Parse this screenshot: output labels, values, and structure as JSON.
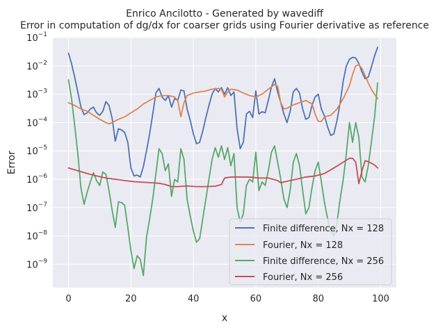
{
  "chart_data": {
    "type": "line",
    "title": "Enrico Ancilotto - Generated by wavediff",
    "subtitle": "Error in computation of dg/dx for coarser grids using Fourier derivative as reference",
    "xlabel": "x",
    "ylabel": "Error",
    "xlim": [
      -5,
      105
    ],
    "ylim": [
      1.5e-10,
      0.1
    ],
    "yscale": "log",
    "grid": true,
    "legend_position": "lower-right",
    "xticks": [
      0,
      20,
      40,
      60,
      80,
      100
    ],
    "xtick_labels": [
      "0",
      "20",
      "40",
      "60",
      "80",
      "100"
    ],
    "ytick_exponents": [
      -9,
      -8,
      -7,
      -6,
      -5,
      -4,
      -3,
      -2,
      -1
    ],
    "series": [
      {
        "name": "Finite difference, Nx = 128",
        "color": "#4c72b0",
        "points": [
          [
            0,
            0.028
          ],
          [
            1,
            0.012
          ],
          [
            2,
            0.004
          ],
          [
            3,
            0.0012
          ],
          [
            4,
            0.00035
          ],
          [
            5,
            0.00019
          ],
          [
            6,
            0.00022
          ],
          [
            7,
            0.0003
          ],
          [
            8,
            0.00035
          ],
          [
            9,
            0.00022
          ],
          [
            10,
            0.00018
          ],
          [
            11,
            0.00025
          ],
          [
            12,
            0.00055
          ],
          [
            13,
            0.0004
          ],
          [
            14,
            0.00014
          ],
          [
            15,
            2.2e-05
          ],
          [
            16,
            6e-05
          ],
          [
            17,
            5.5e-05
          ],
          [
            18,
            4.5e-05
          ],
          [
            19,
            2e-05
          ],
          [
            20,
            2.5e-06
          ],
          [
            21,
            1.3e-06
          ],
          [
            22,
            1.4e-06
          ],
          [
            23,
            1.2e-06
          ],
          [
            24,
            2.8e-06
          ],
          [
            25,
            1e-05
          ],
          [
            26,
            4e-05
          ],
          [
            27,
            0.0002
          ],
          [
            28,
            0.0011
          ],
          [
            29,
            0.0016
          ],
          [
            30,
            0.0008
          ],
          [
            31,
            0.0006
          ],
          [
            32,
            0.0009
          ],
          [
            33,
            0.00035
          ],
          [
            34,
            0.0007
          ],
          [
            35,
            0.0006
          ],
          [
            36,
            0.0014
          ],
          [
            37,
            0.0013
          ],
          [
            38,
            0.0003
          ],
          [
            39,
            0.00012
          ],
          [
            40,
            4e-05
          ],
          [
            41,
            1.8e-05
          ],
          [
            42,
            2e-05
          ],
          [
            43,
            5e-05
          ],
          [
            44,
            0.00015
          ],
          [
            45,
            0.0004
          ],
          [
            46,
            0.001
          ],
          [
            47,
            0.0016
          ],
          [
            48,
            0.0012
          ],
          [
            49,
            0.0017
          ],
          [
            50,
            0.001
          ],
          [
            51,
            0.0017
          ],
          [
            52,
            0.0009
          ],
          [
            53,
            0.0012
          ],
          [
            54,
            6e-05
          ],
          [
            55,
            1.2e-05
          ],
          [
            56,
            2e-05
          ],
          [
            57,
            0.0002
          ],
          [
            58,
            0.00025
          ],
          [
            59,
            0.00015
          ],
          [
            60,
            0.0013
          ],
          [
            61,
            0.0002
          ],
          [
            62,
            0.00024
          ],
          [
            63,
            0.00022
          ],
          [
            64,
            0.0006
          ],
          [
            65,
            0.0018
          ],
          [
            66,
            0.0035
          ],
          [
            67,
            0.0012
          ],
          [
            68,
            0.0005
          ],
          [
            69,
            0.0002
          ],
          [
            70,
            0.0001
          ],
          [
            71,
            0.00025
          ],
          [
            72,
            0.0012
          ],
          [
            73,
            0.0016
          ],
          [
            74,
            0.0011
          ],
          [
            75,
            0.0003
          ],
          [
            76,
            0.00013
          ],
          [
            77,
            0.00015
          ],
          [
            78,
            0.0004
          ],
          [
            79,
            0.0008
          ],
          [
            80,
            0.001
          ],
          [
            81,
            0.0003
          ],
          [
            82,
            0.00017
          ],
          [
            83,
            7e-05
          ],
          [
            84,
            3.5e-05
          ],
          [
            85,
            4e-05
          ],
          [
            86,
            0.00012
          ],
          [
            87,
            0.0005
          ],
          [
            88,
            0.003
          ],
          [
            89,
            0.01
          ],
          [
            90,
            0.017
          ],
          [
            91,
            0.02
          ],
          [
            92,
            0.019
          ],
          [
            93,
            0.012
          ],
          [
            94,
            0.006
          ],
          [
            95,
            0.0035
          ],
          [
            96,
            0.004
          ],
          [
            97,
            0.009
          ],
          [
            98,
            0.022
          ],
          [
            99,
            0.045
          ]
        ]
      },
      {
        "name": "Fourier, Nx = 128",
        "color": "#dd8452",
        "points": [
          [
            0,
            0.0005
          ],
          [
            2,
            0.0004
          ],
          [
            4,
            0.0003
          ],
          [
            6,
            0.00025
          ],
          [
            8,
            0.00018
          ],
          [
            10,
            0.00013
          ],
          [
            12,
            0.0001
          ],
          [
            13,
            9e-05
          ],
          [
            14,
            0.0001
          ],
          [
            16,
            0.00013
          ],
          [
            18,
            0.00016
          ],
          [
            20,
            0.00022
          ],
          [
            22,
            0.0003
          ],
          [
            24,
            0.00045
          ],
          [
            26,
            0.0006
          ],
          [
            28,
            0.0008
          ],
          [
            30,
            0.0009
          ],
          [
            32,
            0.0009
          ],
          [
            34,
            0.0008
          ],
          [
            35,
            0.0006
          ],
          [
            36,
            0.00016
          ],
          [
            37,
            0.0005
          ],
          [
            38,
            0.0009
          ],
          [
            40,
            0.0011
          ],
          [
            42,
            0.0012
          ],
          [
            44,
            0.0013
          ],
          [
            46,
            0.0015
          ],
          [
            48,
            0.0016
          ],
          [
            49,
            0.0015
          ],
          [
            50,
            0.0008
          ],
          [
            51,
            0.0012
          ],
          [
            52,
            0.0015
          ],
          [
            54,
            0.0014
          ],
          [
            56,
            0.0011
          ],
          [
            58,
            0.0009
          ],
          [
            60,
            0.0008
          ],
          [
            62,
            0.001
          ],
          [
            64,
            0.0015
          ],
          [
            66,
            0.0022
          ],
          [
            67,
            0.0019
          ],
          [
            68,
            0.0005
          ],
          [
            69,
            0.0003
          ],
          [
            70,
            0.00032
          ],
          [
            72,
            0.00042
          ],
          [
            74,
            0.0005
          ],
          [
            76,
            0.0006
          ],
          [
            78,
            0.00045
          ],
          [
            79,
            0.0002
          ],
          [
            80,
            0.00011
          ],
          [
            81,
            0.00011
          ],
          [
            82,
            0.00016
          ],
          [
            84,
            0.00018
          ],
          [
            86,
            0.0003
          ],
          [
            88,
            0.0007
          ],
          [
            90,
            0.002
          ],
          [
            91,
            0.005
          ],
          [
            92,
            0.01
          ],
          [
            93,
            0.011
          ],
          [
            94,
            0.008
          ],
          [
            95,
            0.0045
          ],
          [
            96,
            0.0025
          ],
          [
            97,
            0.0015
          ],
          [
            98,
            0.001
          ],
          [
            99,
            0.0007
          ]
        ]
      },
      {
        "name": "Finite difference, Nx = 256",
        "color": "#55a868",
        "points": [
          [
            0,
            0.0032
          ],
          [
            1,
            0.0007
          ],
          [
            2,
            8e-05
          ],
          [
            3,
            8e-06
          ],
          [
            4,
            5e-07
          ],
          [
            5,
            1.3e-07
          ],
          [
            6,
            3.5e-07
          ],
          [
            7,
            8e-07
          ],
          [
            8,
            1.7e-06
          ],
          [
            9,
            9e-07
          ],
          [
            10,
            6e-07
          ],
          [
            11,
            1.8e-06
          ],
          [
            12,
            1.5e-06
          ],
          [
            13,
            4e-07
          ],
          [
            14,
            8e-08
          ],
          [
            15,
            2e-08
          ],
          [
            16,
            1.6e-07
          ],
          [
            17,
            1.5e-07
          ],
          [
            18,
            1.2e-07
          ],
          [
            19,
            2e-08
          ],
          [
            20,
            3e-09
          ],
          [
            21,
            7e-10
          ],
          [
            22,
            2e-09
          ],
          [
            23,
            1.5e-09
          ],
          [
            24,
            4e-10
          ],
          [
            25,
            9e-09
          ],
          [
            26,
            4e-08
          ],
          [
            27,
            2e-07
          ],
          [
            28,
            1.6e-06
          ],
          [
            29,
            1.2e-05
          ],
          [
            30,
            8e-06
          ],
          [
            31,
            2e-06
          ],
          [
            32,
            3.5e-06
          ],
          [
            33,
            2.5e-07
          ],
          [
            34,
            1e-06
          ],
          [
            35,
            8e-07
          ],
          [
            36,
            1.2e-05
          ],
          [
            37,
            5e-06
          ],
          [
            38,
            2e-07
          ],
          [
            39,
            5e-08
          ],
          [
            40,
            1.5e-08
          ],
          [
            41,
            6e-09
          ],
          [
            42,
            8e-09
          ],
          [
            43,
            4e-08
          ],
          [
            44,
            2e-07
          ],
          [
            45,
            1e-06
          ],
          [
            46,
            5e-06
          ],
          [
            47,
            1.3e-05
          ],
          [
            48,
            6e-06
          ],
          [
            49,
            1.5e-05
          ],
          [
            50,
            5e-06
          ],
          [
            51,
            1.3e-05
          ],
          [
            52,
            3e-06
          ],
          [
            53,
            8e-06
          ],
          [
            54,
            1e-07
          ],
          [
            55,
            3e-08
          ],
          [
            56,
            6e-08
          ],
          [
            57,
            6e-07
          ],
          [
            58,
            1e-06
          ],
          [
            59,
            8e-07
          ],
          [
            60,
            9e-06
          ],
          [
            61,
            4e-07
          ],
          [
            62,
            8e-07
          ],
          [
            63,
            6e-07
          ],
          [
            64,
            2e-06
          ],
          [
            65,
            9e-06
          ],
          [
            66,
            1.5e-05
          ],
          [
            67,
            4e-06
          ],
          [
            68,
            1e-06
          ],
          [
            69,
            2e-07
          ],
          [
            70,
            1e-07
          ],
          [
            71,
            4e-07
          ],
          [
            72,
            4e-06
          ],
          [
            73,
            8e-06
          ],
          [
            74,
            3e-06
          ],
          [
            75,
            4e-07
          ],
          [
            76,
            6e-08
          ],
          [
            77,
            1e-07
          ],
          [
            78,
            5e-07
          ],
          [
            79,
            2e-06
          ],
          [
            80,
            4e-06
          ],
          [
            81,
            8e-07
          ],
          [
            82,
            1.5e-07
          ],
          [
            83,
            4e-08
          ],
          [
            84,
            1.5e-08
          ],
          [
            85,
            1e-08
          ],
          [
            86,
            3e-08
          ],
          [
            87,
            2e-07
          ],
          [
            88,
            1e-06
          ],
          [
            89,
            8e-06
          ],
          [
            90,
            0.0001
          ],
          [
            91,
            2e-05
          ],
          [
            92,
            0.0001
          ],
          [
            93,
            3e-05
          ],
          [
            94,
            1.2e-06
          ],
          [
            95,
            8e-07
          ],
          [
            96,
            3e-06
          ],
          [
            97,
            2e-05
          ],
          [
            98,
            0.00015
          ],
          [
            99,
            0.0025
          ]
        ]
      },
      {
        "name": "Fourier, Nx = 256",
        "color": "#c44e52",
        "points": [
          [
            0,
            2.5e-06
          ],
          [
            3,
            2e-06
          ],
          [
            6,
            1.6e-06
          ],
          [
            9,
            1.3e-06
          ],
          [
            12,
            1.1e-06
          ],
          [
            15,
            1e-06
          ],
          [
            18,
            9e-07
          ],
          [
            21,
            8.2e-07
          ],
          [
            24,
            7.8e-07
          ],
          [
            27,
            7.5e-07
          ],
          [
            29,
            7.2e-07
          ],
          [
            31,
            6.5e-07
          ],
          [
            33,
            5.5e-07
          ],
          [
            35,
            5.5e-07
          ],
          [
            38,
            5.8e-07
          ],
          [
            41,
            5.5e-07
          ],
          [
            44,
            5.5e-07
          ],
          [
            47,
            5.7e-07
          ],
          [
            49,
            6.5e-07
          ],
          [
            50,
            1.1e-06
          ],
          [
            52,
            1.2e-06
          ],
          [
            55,
            1.2e-06
          ],
          [
            58,
            1.2e-06
          ],
          [
            61,
            1.1e-06
          ],
          [
            64,
            1.1e-06
          ],
          [
            67,
            9e-07
          ],
          [
            68,
            7.5e-07
          ],
          [
            70,
            8.5e-07
          ],
          [
            73,
            1e-06
          ],
          [
            76,
            1.2e-06
          ],
          [
            79,
            1.3e-06
          ],
          [
            82,
            1.6e-06
          ],
          [
            85,
            2.5e-06
          ],
          [
            88,
            4e-06
          ],
          [
            90,
            5.5e-06
          ],
          [
            91,
            5.5e-06
          ],
          [
            92,
            4e-06
          ],
          [
            93,
            7e-07
          ],
          [
            94,
            2e-06
          ],
          [
            95,
            4.5e-06
          ],
          [
            96,
            4.2e-06
          ],
          [
            98,
            3.2e-06
          ],
          [
            99,
            2.5e-06
          ]
        ]
      }
    ]
  }
}
